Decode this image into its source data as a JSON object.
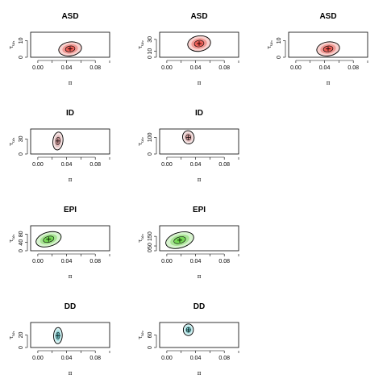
{
  "chart_data": [
    {
      "type": "contour",
      "title": "ASD",
      "xlabel": "π",
      "ylabel": "τ_{ω₁}",
      "xlim": [
        -0.01,
        0.1
      ],
      "xticks": [
        "0.00",
        "0.04",
        "0.08"
      ],
      "ylim": [
        0,
        15
      ],
      "yticks": [
        "0",
        "10"
      ],
      "color": "#e8453c",
      "center": [
        0.045,
        5
      ],
      "size": [
        0.016,
        4.2
      ],
      "tilt": -0.25
    },
    {
      "type": "contour",
      "title": "ASD",
      "xlabel": "π",
      "ylabel": "τ_{ω₂}",
      "xlim": [
        -0.01,
        0.1
      ],
      "xticks": [
        "0.00",
        "0.04",
        "0.08"
      ],
      "ylim": [
        0,
        42
      ],
      "yticks": [
        "0",
        "10",
        "30"
      ],
      "color": "#e8453c",
      "center": [
        0.045,
        23
      ],
      "size": [
        0.016,
        13
      ],
      "tilt": -0.25
    },
    {
      "type": "contour",
      "title": "ASD",
      "xlabel": "π",
      "ylabel": "τ_{ω₃}",
      "xlim": [
        -0.01,
        0.1
      ],
      "xticks": [
        "0.00",
        "0.04",
        "0.08"
      ],
      "ylim": [
        0,
        15
      ],
      "yticks": [
        "0",
        "10"
      ],
      "color": "#e8453c",
      "center": [
        0.045,
        5
      ],
      "size": [
        0.016,
        4.2
      ],
      "tilt": -0.25
    },
    {
      "type": "contour",
      "title": "ID",
      "xlabel": "π",
      "ylabel": "τ_{ω₁}",
      "xlim": [
        -0.01,
        0.1
      ],
      "xticks": [
        "0.00",
        "0.04",
        "0.08"
      ],
      "ylim": [
        0,
        50
      ],
      "yticks": [
        "0",
        "30"
      ],
      "color": "#cd8a8a",
      "center": [
        0.028,
        26
      ],
      "size": [
        0.007,
        18
      ],
      "tilt": 0.2
    },
    {
      "type": "contour",
      "title": "ID",
      "xlabel": "π",
      "ylabel": "τ_{ω₂}",
      "xlim": [
        -0.01,
        0.1
      ],
      "xticks": [
        "0.00",
        "0.04",
        "0.08"
      ],
      "ylim": [
        0,
        150
      ],
      "yticks": [
        "0",
        "100"
      ],
      "color": "#cd8a8a",
      "center": [
        0.03,
        100
      ],
      "size": [
        0.008,
        40
      ],
      "tilt": -0.35
    },
    {
      "type": "contour",
      "title": "EPI",
      "xlabel": "π",
      "ylabel": "τ_{ω₁}",
      "xlim": [
        -0.01,
        0.1
      ],
      "xticks": [
        "0.00",
        "0.04",
        "0.08"
      ],
      "ylim": [
        0,
        120
      ],
      "yticks": [
        "0",
        "40",
        "80"
      ],
      "color": "#5fcf3a",
      "center": [
        0.015,
        55
      ],
      "size": [
        0.018,
        34
      ],
      "tilt": -0.5
    },
    {
      "type": "contour",
      "title": "EPI",
      "xlabel": "π",
      "ylabel": "τ_{ω₂}",
      "xlim": [
        -0.01,
        0.1
      ],
      "xticks": [
        "0.00",
        "0.04",
        "0.08"
      ],
      "ylim": [
        0,
        260
      ],
      "yticks": [
        "0",
        "50",
        "150"
      ],
      "color": "#5fcf3a",
      "center": [
        0.018,
        110
      ],
      "size": [
        0.02,
        80
      ],
      "tilt": -0.5
    },
    {
      "type": "contour",
      "title": "DD",
      "xlabel": "π",
      "ylabel": "τ_{ω₁}",
      "xlim": [
        -0.01,
        0.1
      ],
      "xticks": [
        "0.00",
        "0.04",
        "0.08"
      ],
      "ylim": [
        0,
        40
      ],
      "yticks": [
        "0",
        "20"
      ],
      "color": "#5bc8cc",
      "center": [
        0.028,
        19
      ],
      "size": [
        0.006,
        13
      ],
      "tilt": 0.05
    },
    {
      "type": "contour",
      "title": "DD",
      "xlabel": "π",
      "ylabel": "τ_{ω₂}",
      "xlim": [
        -0.01,
        0.1
      ],
      "xticks": [
        "0.00",
        "0.04",
        "0.08"
      ],
      "ylim": [
        0,
        120
      ],
      "yticks": [
        "0",
        "60"
      ],
      "color": "#5bc8cc",
      "center": [
        0.03,
        85
      ],
      "size": [
        0.007,
        28
      ],
      "tilt": 0.05
    }
  ]
}
